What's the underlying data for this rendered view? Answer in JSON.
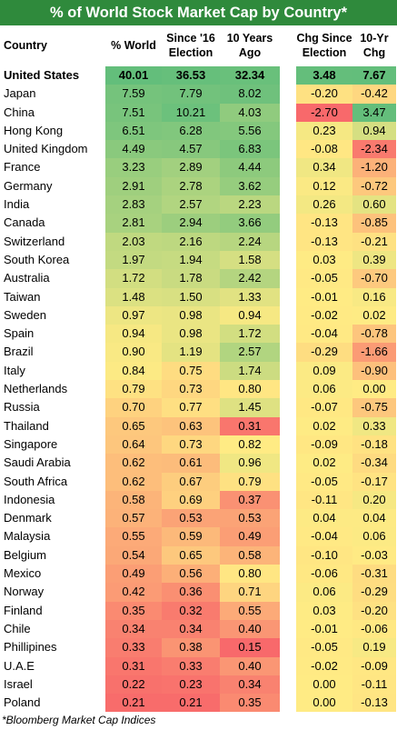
{
  "title": "% of World Stock Market Cap by Country*",
  "headers": {
    "country": "Country",
    "world": "% World",
    "since16": "Since '16 Election",
    "years10": "10 Years Ago",
    "chg_since": "Chg Since Election",
    "chg10": "10-Yr Chg"
  },
  "rows": [
    {
      "country": "United States",
      "world": "40.01",
      "since16": "36.53",
      "years10": "32.34",
      "chg_since": "3.48",
      "chg10": "7.67"
    },
    {
      "country": "Japan",
      "world": "7.59",
      "since16": "7.79",
      "years10": "8.02",
      "chg_since": "-0.20",
      "chg10": "-0.42"
    },
    {
      "country": "China",
      "world": "7.51",
      "since16": "10.21",
      "years10": "4.03",
      "chg_since": "-2.70",
      "chg10": "3.47"
    },
    {
      "country": "Hong Kong",
      "world": "6.51",
      "since16": "6.28",
      "years10": "5.56",
      "chg_since": "0.23",
      "chg10": "0.94"
    },
    {
      "country": "United Kingdom",
      "world": "4.49",
      "since16": "4.57",
      "years10": "6.83",
      "chg_since": "-0.08",
      "chg10": "-2.34"
    },
    {
      "country": "France",
      "world": "3.23",
      "since16": "2.89",
      "years10": "4.44",
      "chg_since": "0.34",
      "chg10": "-1.20"
    },
    {
      "country": "Germany",
      "world": "2.91",
      "since16": "2.78",
      "years10": "3.62",
      "chg_since": "0.12",
      "chg10": "-0.72"
    },
    {
      "country": "India",
      "world": "2.83",
      "since16": "2.57",
      "years10": "2.23",
      "chg_since": "0.26",
      "chg10": "0.60"
    },
    {
      "country": "Canada",
      "world": "2.81",
      "since16": "2.94",
      "years10": "3.66",
      "chg_since": "-0.13",
      "chg10": "-0.85"
    },
    {
      "country": "Switzerland",
      "world": "2.03",
      "since16": "2.16",
      "years10": "2.24",
      "chg_since": "-0.13",
      "chg10": "-0.21"
    },
    {
      "country": "South Korea",
      "world": "1.97",
      "since16": "1.94",
      "years10": "1.58",
      "chg_since": "0.03",
      "chg10": "0.39"
    },
    {
      "country": "Australia",
      "world": "1.72",
      "since16": "1.78",
      "years10": "2.42",
      "chg_since": "-0.05",
      "chg10": "-0.70"
    },
    {
      "country": "Taiwan",
      "world": "1.48",
      "since16": "1.50",
      "years10": "1.33",
      "chg_since": "-0.01",
      "chg10": "0.16"
    },
    {
      "country": "Sweden",
      "world": "0.97",
      "since16": "0.98",
      "years10": "0.94",
      "chg_since": "-0.02",
      "chg10": "0.02"
    },
    {
      "country": "Spain",
      "world": "0.94",
      "since16": "0.98",
      "years10": "1.72",
      "chg_since": "-0.04",
      "chg10": "-0.78"
    },
    {
      "country": "Brazil",
      "world": "0.90",
      "since16": "1.19",
      "years10": "2.57",
      "chg_since": "-0.29",
      "chg10": "-1.66"
    },
    {
      "country": "Italy",
      "world": "0.84",
      "since16": "0.75",
      "years10": "1.74",
      "chg_since": "0.09",
      "chg10": "-0.90"
    },
    {
      "country": "Netherlands",
      "world": "0.79",
      "since16": "0.73",
      "years10": "0.80",
      "chg_since": "0.06",
      "chg10": "0.00"
    },
    {
      "country": "Russia",
      "world": "0.70",
      "since16": "0.77",
      "years10": "1.45",
      "chg_since": "-0.07",
      "chg10": "-0.75"
    },
    {
      "country": "Thailand",
      "world": "0.65",
      "since16": "0.63",
      "years10": "0.31",
      "chg_since": "0.02",
      "chg10": "0.33"
    },
    {
      "country": "Singapore",
      "world": "0.64",
      "since16": "0.73",
      "years10": "0.82",
      "chg_since": "-0.09",
      "chg10": "-0.18"
    },
    {
      "country": "Saudi Arabia",
      "world": "0.62",
      "since16": "0.61",
      "years10": "0.96",
      "chg_since": "0.02",
      "chg10": "-0.34"
    },
    {
      "country": "South Africa",
      "world": "0.62",
      "since16": "0.67",
      "years10": "0.79",
      "chg_since": "-0.05",
      "chg10": "-0.17"
    },
    {
      "country": "Indonesia",
      "world": "0.58",
      "since16": "0.69",
      "years10": "0.37",
      "chg_since": "-0.11",
      "chg10": "0.20"
    },
    {
      "country": "Denmark",
      "world": "0.57",
      "since16": "0.53",
      "years10": "0.53",
      "chg_since": "0.04",
      "chg10": "0.04"
    },
    {
      "country": "Malaysia",
      "world": "0.55",
      "since16": "0.59",
      "years10": "0.49",
      "chg_since": "-0.04",
      "chg10": "0.06"
    },
    {
      "country": "Belgium",
      "world": "0.54",
      "since16": "0.65",
      "years10": "0.58",
      "chg_since": "-0.10",
      "chg10": "-0.03"
    },
    {
      "country": "Mexico",
      "world": "0.49",
      "since16": "0.56",
      "years10": "0.80",
      "chg_since": "-0.06",
      "chg10": "-0.31"
    },
    {
      "country": "Norway",
      "world": "0.42",
      "since16": "0.36",
      "years10": "0.71",
      "chg_since": "0.06",
      "chg10": "-0.29"
    },
    {
      "country": "Finland",
      "world": "0.35",
      "since16": "0.32",
      "years10": "0.55",
      "chg_since": "0.03",
      "chg10": "-0.20"
    },
    {
      "country": "Chile",
      "world": "0.34",
      "since16": "0.34",
      "years10": "0.40",
      "chg_since": "-0.01",
      "chg10": "-0.06"
    },
    {
      "country": "Phillipines",
      "world": "0.33",
      "since16": "0.38",
      "years10": "0.15",
      "chg_since": "-0.05",
      "chg10": "0.19"
    },
    {
      "country": "U.A.E",
      "world": "0.31",
      "since16": "0.33",
      "years10": "0.40",
      "chg_since": "-0.02",
      "chg10": "-0.09"
    },
    {
      "country": "Israel",
      "world": "0.22",
      "since16": "0.23",
      "years10": "0.34",
      "chg_since": "0.00",
      "chg10": "-0.11"
    },
    {
      "country": "Poland",
      "world": "0.21",
      "since16": "0.21",
      "years10": "0.35",
      "chg_since": "0.00",
      "chg10": "-0.13"
    }
  ],
  "footnote": "*Bloomberg Market Cap Indices",
  "colors": {
    "title_bg": "#2f8a3c",
    "scale_low": "#f8696b",
    "scale_mid": "#ffeb84",
    "scale_high": "#63be7b"
  }
}
